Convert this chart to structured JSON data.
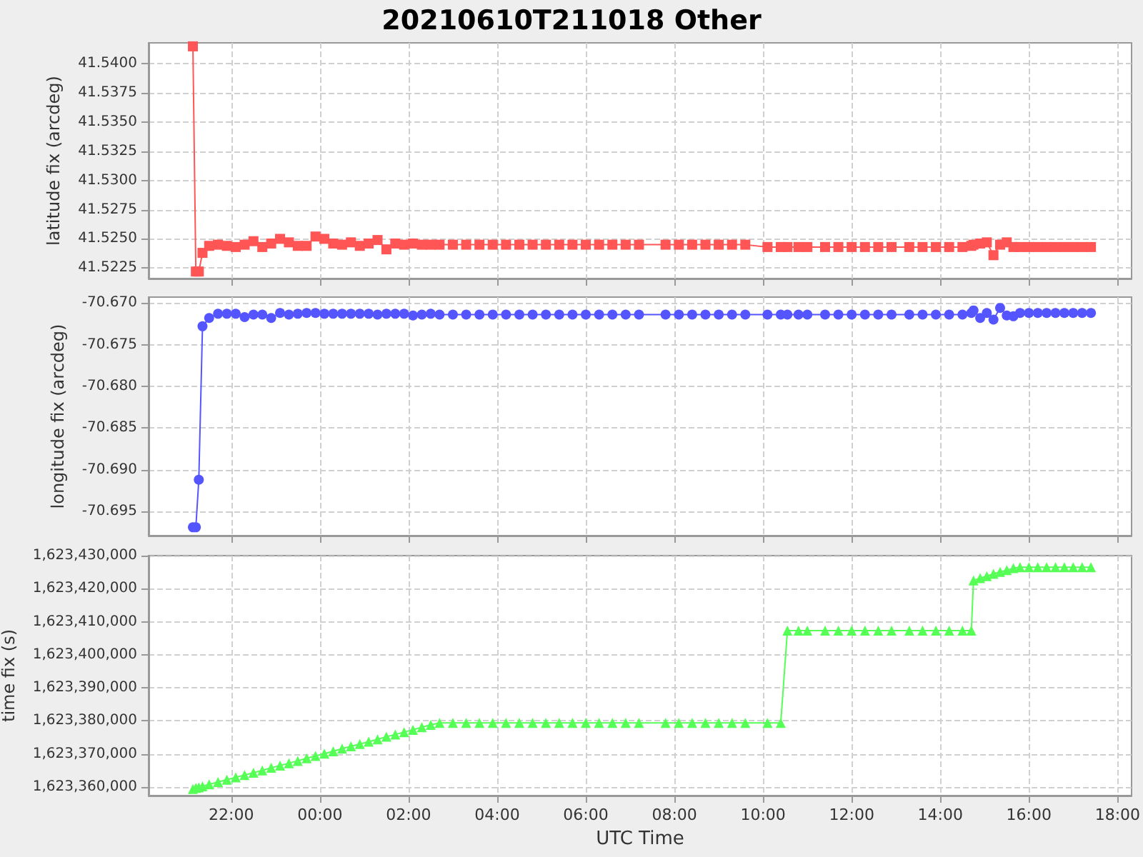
{
  "chart_data": [
    {
      "type": "line",
      "title": "20210610T211018 Other",
      "ylabel": "latitude fix (arcdeg)",
      "marker": "square",
      "grid": true,
      "tick_labels": "y",
      "x": [
        "2021-06-10T21:08",
        "2021-06-10T21:12",
        "2021-06-10T21:16",
        "2021-06-10T21:21",
        "2021-06-10T21:30",
        "2021-06-10T21:42",
        "2021-06-10T21:54",
        "2021-06-10T22:06",
        "2021-06-10T22:18",
        "2021-06-10T22:30",
        "2021-06-10T22:42",
        "2021-06-10T22:54",
        "2021-06-10T23:06",
        "2021-06-10T23:18",
        "2021-06-10T23:30",
        "2021-06-10T23:42",
        "2021-06-10T23:54",
        "2021-06-11T00:06",
        "2021-06-11T00:18",
        "2021-06-11T00:30",
        "2021-06-11T00:42",
        "2021-06-11T00:54",
        "2021-06-11T01:06",
        "2021-06-11T01:18",
        "2021-06-11T01:30",
        "2021-06-11T01:42",
        "2021-06-11T01:54",
        "2021-06-11T02:06",
        "2021-06-11T02:18",
        "2021-06-11T02:30",
        "2021-06-11T02:42",
        "2021-06-11T03:00",
        "2021-06-11T03:18",
        "2021-06-11T03:36",
        "2021-06-11T03:54",
        "2021-06-11T04:12",
        "2021-06-11T04:30",
        "2021-06-11T04:48",
        "2021-06-11T05:06",
        "2021-06-11T05:24",
        "2021-06-11T05:42",
        "2021-06-11T06:00",
        "2021-06-11T06:18",
        "2021-06-11T06:36",
        "2021-06-11T06:54",
        "2021-06-11T07:12",
        "2021-06-11T07:48",
        "2021-06-11T08:06",
        "2021-06-11T08:24",
        "2021-06-11T08:42",
        "2021-06-11T09:00",
        "2021-06-11T09:18",
        "2021-06-11T09:36",
        "2021-06-11T10:06",
        "2021-06-11T10:24",
        "2021-06-11T10:33",
        "2021-06-11T10:48",
        "2021-06-11T11:00",
        "2021-06-11T11:24",
        "2021-06-11T11:42",
        "2021-06-11T12:00",
        "2021-06-11T12:18",
        "2021-06-11T12:36",
        "2021-06-11T12:54",
        "2021-06-11T13:18",
        "2021-06-11T13:36",
        "2021-06-11T13:54",
        "2021-06-11T14:12",
        "2021-06-11T14:30",
        "2021-06-11T14:42",
        "2021-06-11T14:45",
        "2021-06-11T14:54",
        "2021-06-11T15:03",
        "2021-06-11T15:12",
        "2021-06-11T15:21",
        "2021-06-11T15:30",
        "2021-06-11T15:39",
        "2021-06-11T15:48",
        "2021-06-11T16:00",
        "2021-06-11T16:12",
        "2021-06-11T16:24",
        "2021-06-11T16:36",
        "2021-06-11T16:48",
        "2021-06-11T17:00",
        "2021-06-11T17:12",
        "2021-06-11T17:24"
      ],
      "series": [
        {
          "color": "#ff5555",
          "values": [
            41.5415,
            41.5222,
            41.5222,
            41.5238,
            41.5244,
            41.5245,
            41.5244,
            41.5243,
            41.5245,
            41.5248,
            41.5243,
            41.5246,
            41.525,
            41.5247,
            41.5244,
            41.5244,
            41.5252,
            41.525,
            41.5246,
            41.5245,
            41.5247,
            41.5244,
            41.5246,
            41.5249,
            41.5241,
            41.5246,
            41.5245,
            41.5246,
            41.5245,
            41.5245,
            41.5245,
            41.5245,
            41.5245,
            41.5245,
            41.5245,
            41.5245,
            41.5245,
            41.5245,
            41.5245,
            41.5245,
            41.5245,
            41.5245,
            41.5245,
            41.5245,
            41.5245,
            41.5245,
            41.5245,
            41.5245,
            41.5245,
            41.5245,
            41.5245,
            41.5245,
            41.5245,
            41.5243,
            41.5243,
            41.5243,
            41.5243,
            41.5243,
            41.5243,
            41.5243,
            41.5243,
            41.5243,
            41.5243,
            41.5243,
            41.5243,
            41.5243,
            41.5243,
            41.5243,
            41.5243,
            41.5244,
            41.5245,
            41.5246,
            41.5247,
            41.5236,
            41.5245,
            41.5247,
            41.5243,
            41.5243,
            41.5243,
            41.5243,
            41.5243,
            41.5243,
            41.5243,
            41.5243,
            41.5243,
            41.5243
          ]
        }
      ],
      "xlim": [
        "2021-06-10T20:08",
        "2021-06-11T18:19"
      ],
      "xticks": [
        "2021-06-10T22:00",
        "2021-06-11T00:00",
        "2021-06-11T02:00",
        "2021-06-11T04:00",
        "2021-06-11T06:00",
        "2021-06-11T08:00",
        "2021-06-11T10:00",
        "2021-06-11T12:00",
        "2021-06-11T14:00",
        "2021-06-11T16:00",
        "2021-06-11T18:00"
      ],
      "ylim": [
        41.5216,
        41.5418
      ],
      "yticks": [
        {
          "value": 41.5225,
          "label": "41.5225"
        },
        {
          "value": 41.525,
          "label": "41.5250"
        },
        {
          "value": 41.5275,
          "label": "41.5275"
        },
        {
          "value": 41.53,
          "label": "41.5300"
        },
        {
          "value": 41.5325,
          "label": "41.5325"
        },
        {
          "value": 41.535,
          "label": "41.5350"
        },
        {
          "value": 41.5375,
          "label": "41.5375"
        },
        {
          "value": 41.54,
          "label": "41.5400"
        }
      ]
    },
    {
      "type": "line",
      "ylabel": "longitude fix (arcdeg)",
      "marker": "circle",
      "grid": true,
      "tick_labels": "y",
      "x": [
        "2021-06-10T21:08",
        "2021-06-10T21:12",
        "2021-06-10T21:16",
        "2021-06-10T21:21",
        "2021-06-10T21:30",
        "2021-06-10T21:42",
        "2021-06-10T21:54",
        "2021-06-10T22:06",
        "2021-06-10T22:18",
        "2021-06-10T22:30",
        "2021-06-10T22:42",
        "2021-06-10T22:54",
        "2021-06-10T23:06",
        "2021-06-10T23:18",
        "2021-06-10T23:30",
        "2021-06-10T23:42",
        "2021-06-10T23:54",
        "2021-06-11T00:06",
        "2021-06-11T00:18",
        "2021-06-11T00:30",
        "2021-06-11T00:42",
        "2021-06-11T00:54",
        "2021-06-11T01:06",
        "2021-06-11T01:18",
        "2021-06-11T01:30",
        "2021-06-11T01:42",
        "2021-06-11T01:54",
        "2021-06-11T02:06",
        "2021-06-11T02:18",
        "2021-06-11T02:30",
        "2021-06-11T02:42",
        "2021-06-11T03:00",
        "2021-06-11T03:18",
        "2021-06-11T03:36",
        "2021-06-11T03:54",
        "2021-06-11T04:12",
        "2021-06-11T04:30",
        "2021-06-11T04:48",
        "2021-06-11T05:06",
        "2021-06-11T05:24",
        "2021-06-11T05:42",
        "2021-06-11T06:00",
        "2021-06-11T06:18",
        "2021-06-11T06:36",
        "2021-06-11T06:54",
        "2021-06-11T07:12",
        "2021-06-11T07:48",
        "2021-06-11T08:06",
        "2021-06-11T08:24",
        "2021-06-11T08:42",
        "2021-06-11T09:00",
        "2021-06-11T09:18",
        "2021-06-11T09:36",
        "2021-06-11T10:06",
        "2021-06-11T10:24",
        "2021-06-11T10:33",
        "2021-06-11T10:48",
        "2021-06-11T11:00",
        "2021-06-11T11:24",
        "2021-06-11T11:42",
        "2021-06-11T12:00",
        "2021-06-11T12:18",
        "2021-06-11T12:36",
        "2021-06-11T12:54",
        "2021-06-11T13:18",
        "2021-06-11T13:36",
        "2021-06-11T13:54",
        "2021-06-11T14:12",
        "2021-06-11T14:30",
        "2021-06-11T14:42",
        "2021-06-11T14:45",
        "2021-06-11T14:54",
        "2021-06-11T15:03",
        "2021-06-11T15:12",
        "2021-06-11T15:21",
        "2021-06-11T15:30",
        "2021-06-11T15:39",
        "2021-06-11T15:48",
        "2021-06-11T16:00",
        "2021-06-11T16:12",
        "2021-06-11T16:24",
        "2021-06-11T16:36",
        "2021-06-11T16:48",
        "2021-06-11T17:00",
        "2021-06-11T17:12",
        "2021-06-11T17:24"
      ],
      "series": [
        {
          "color": "#5555ff",
          "values": [
            -70.6969,
            -70.6969,
            -70.6912,
            -70.6728,
            -70.6718,
            -70.6713,
            -70.6713,
            -70.6713,
            -70.6717,
            -70.6714,
            -70.6714,
            -70.6718,
            -70.6712,
            -70.6714,
            -70.6713,
            -70.6712,
            -70.6712,
            -70.6713,
            -70.6713,
            -70.6713,
            -70.6713,
            -70.6713,
            -70.6713,
            -70.6714,
            -70.6713,
            -70.6713,
            -70.6713,
            -70.6715,
            -70.6714,
            -70.6713,
            -70.6714,
            -70.6714,
            -70.6714,
            -70.6714,
            -70.6714,
            -70.6714,
            -70.6714,
            -70.6714,
            -70.6714,
            -70.6714,
            -70.6714,
            -70.6714,
            -70.6714,
            -70.6714,
            -70.6714,
            -70.6714,
            -70.6714,
            -70.6714,
            -70.6714,
            -70.6714,
            -70.6714,
            -70.6714,
            -70.6714,
            -70.6714,
            -70.6714,
            -70.6714,
            -70.6714,
            -70.6714,
            -70.6714,
            -70.6714,
            -70.6714,
            -70.6714,
            -70.6714,
            -70.6714,
            -70.6714,
            -70.6714,
            -70.6714,
            -70.6714,
            -70.6714,
            -70.6712,
            -70.6709,
            -70.6718,
            -70.6712,
            -70.672,
            -70.6706,
            -70.6715,
            -70.6716,
            -70.6712,
            -70.6712,
            -70.6712,
            -70.6712,
            -70.6712,
            -70.6712,
            -70.6712,
            -70.6712,
            -70.6712
          ]
        }
      ],
      "xlim": [
        "2021-06-10T20:08",
        "2021-06-11T18:19"
      ],
      "xticks": [
        "2021-06-10T22:00",
        "2021-06-11T00:00",
        "2021-06-11T02:00",
        "2021-06-11T04:00",
        "2021-06-11T06:00",
        "2021-06-11T08:00",
        "2021-06-11T10:00",
        "2021-06-11T12:00",
        "2021-06-11T14:00",
        "2021-06-11T16:00",
        "2021-06-11T18:00"
      ],
      "ylim": [
        -70.6979,
        -70.6693
      ],
      "yticks": [
        {
          "value": -70.695,
          "label": "-70.695"
        },
        {
          "value": -70.69,
          "label": "-70.690"
        },
        {
          "value": -70.685,
          "label": "-70.685"
        },
        {
          "value": -70.68,
          "label": "-70.680"
        },
        {
          "value": -70.675,
          "label": "-70.675"
        },
        {
          "value": -70.67,
          "label": "-70.670"
        }
      ]
    },
    {
      "type": "line",
      "ylabel": "time fix (s)",
      "xlabel": "UTC Time",
      "marker": "triangle",
      "grid": true,
      "x": [
        "2021-06-10T21:08",
        "2021-06-10T21:12",
        "2021-06-10T21:16",
        "2021-06-10T21:21",
        "2021-06-10T21:30",
        "2021-06-10T21:42",
        "2021-06-10T21:54",
        "2021-06-10T22:06",
        "2021-06-10T22:18",
        "2021-06-10T22:30",
        "2021-06-10T22:42",
        "2021-06-10T22:54",
        "2021-06-10T23:06",
        "2021-06-10T23:18",
        "2021-06-10T23:30",
        "2021-06-10T23:42",
        "2021-06-10T23:54",
        "2021-06-11T00:06",
        "2021-06-11T00:18",
        "2021-06-11T00:30",
        "2021-06-11T00:42",
        "2021-06-11T00:54",
        "2021-06-11T01:06",
        "2021-06-11T01:18",
        "2021-06-11T01:30",
        "2021-06-11T01:42",
        "2021-06-11T01:54",
        "2021-06-11T02:06",
        "2021-06-11T02:18",
        "2021-06-11T02:30",
        "2021-06-11T02:42",
        "2021-06-11T03:00",
        "2021-06-11T03:18",
        "2021-06-11T03:36",
        "2021-06-11T03:54",
        "2021-06-11T04:12",
        "2021-06-11T04:30",
        "2021-06-11T04:48",
        "2021-06-11T05:06",
        "2021-06-11T05:24",
        "2021-06-11T05:42",
        "2021-06-11T06:00",
        "2021-06-11T06:18",
        "2021-06-11T06:36",
        "2021-06-11T06:54",
        "2021-06-11T07:12",
        "2021-06-11T07:48",
        "2021-06-11T08:06",
        "2021-06-11T08:24",
        "2021-06-11T08:42",
        "2021-06-11T09:00",
        "2021-06-11T09:18",
        "2021-06-11T09:36",
        "2021-06-11T10:06",
        "2021-06-11T10:24",
        "2021-06-11T10:33",
        "2021-06-11T10:48",
        "2021-06-11T11:00",
        "2021-06-11T11:24",
        "2021-06-11T11:42",
        "2021-06-11T12:00",
        "2021-06-11T12:18",
        "2021-06-11T12:36",
        "2021-06-11T12:54",
        "2021-06-11T13:18",
        "2021-06-11T13:36",
        "2021-06-11T13:54",
        "2021-06-11T14:12",
        "2021-06-11T14:30",
        "2021-06-11T14:42",
        "2021-06-11T14:45",
        "2021-06-11T14:54",
        "2021-06-11T15:03",
        "2021-06-11T15:12",
        "2021-06-11T15:21",
        "2021-06-11T15:30",
        "2021-06-11T15:39",
        "2021-06-11T15:48",
        "2021-06-11T16:00",
        "2021-06-11T16:12",
        "2021-06-11T16:24",
        "2021-06-11T16:36",
        "2021-06-11T16:48",
        "2021-06-11T17:00",
        "2021-06-11T17:12",
        "2021-06-11T17:24"
      ],
      "series": [
        {
          "color": "#55ff55",
          "values": [
            1623359400,
            1623359700,
            1623359900,
            1623360200,
            1623360800,
            1623361500,
            1623362200,
            1623362900,
            1623363600,
            1623364300,
            1623365000,
            1623365800,
            1623366500,
            1623367200,
            1623367900,
            1623368700,
            1623369400,
            1623370100,
            1623370800,
            1623371600,
            1623372300,
            1623373000,
            1623373700,
            1623374400,
            1623375200,
            1623375900,
            1623376600,
            1623377300,
            1623378100,
            1623378800,
            1623379400,
            1623379400,
            1623379400,
            1623379400,
            1623379400,
            1623379400,
            1623379400,
            1623379400,
            1623379400,
            1623379400,
            1623379400,
            1623379400,
            1623379400,
            1623379400,
            1623379400,
            1623379400,
            1623379400,
            1623379400,
            1623379400,
            1623379400,
            1623379400,
            1623379400,
            1623379400,
            1623379400,
            1623379400,
            1623407300,
            1623407300,
            1623407300,
            1623407300,
            1623407300,
            1623407300,
            1623407300,
            1623407300,
            1623407300,
            1623407300,
            1623407300,
            1623407300,
            1623407300,
            1623407300,
            1623407300,
            1623422500,
            1623423200,
            1623423800,
            1623424500,
            1623425100,
            1623425600,
            1623426200,
            1623426500,
            1623426500,
            1623426500,
            1623426500,
            1623426500,
            1623426500,
            1623426500,
            1623426500,
            1623426500
          ]
        }
      ],
      "xlim": [
        "2021-06-10T20:08",
        "2021-06-11T18:19"
      ],
      "xticks": [
        {
          "value": "2021-06-10T22:00",
          "label": "22:00"
        },
        {
          "value": "2021-06-11T00:00",
          "label": "00:00"
        },
        {
          "value": "2021-06-11T02:00",
          "label": "02:00"
        },
        {
          "value": "2021-06-11T04:00",
          "label": "04:00"
        },
        {
          "value": "2021-06-11T06:00",
          "label": "06:00"
        },
        {
          "value": "2021-06-11T08:00",
          "label": "08:00"
        },
        {
          "value": "2021-06-11T10:00",
          "label": "10:00"
        },
        {
          "value": "2021-06-11T12:00",
          "label": "12:00"
        },
        {
          "value": "2021-06-11T14:00",
          "label": "14:00"
        },
        {
          "value": "2021-06-11T16:00",
          "label": "16:00"
        },
        {
          "value": "2021-06-11T18:00",
          "label": "18:00"
        }
      ],
      "ylim": [
        1623357400,
        1623430000
      ],
      "yticks": [
        {
          "value": 1623360000,
          "label": "1,623,360,000"
        },
        {
          "value": 1623370000,
          "label": "1,623,370,000"
        },
        {
          "value": 1623380000,
          "label": "1,623,380,000"
        },
        {
          "value": 1623390000,
          "label": "1,623,390,000"
        },
        {
          "value": 1623400000,
          "label": "1,623,400,000"
        },
        {
          "value": 1623410000,
          "label": "1,623,410,000"
        },
        {
          "value": 1623420000,
          "label": "1,623,420,000"
        },
        {
          "value": 1623430000,
          "label": "1,623,430,000"
        }
      ]
    }
  ]
}
